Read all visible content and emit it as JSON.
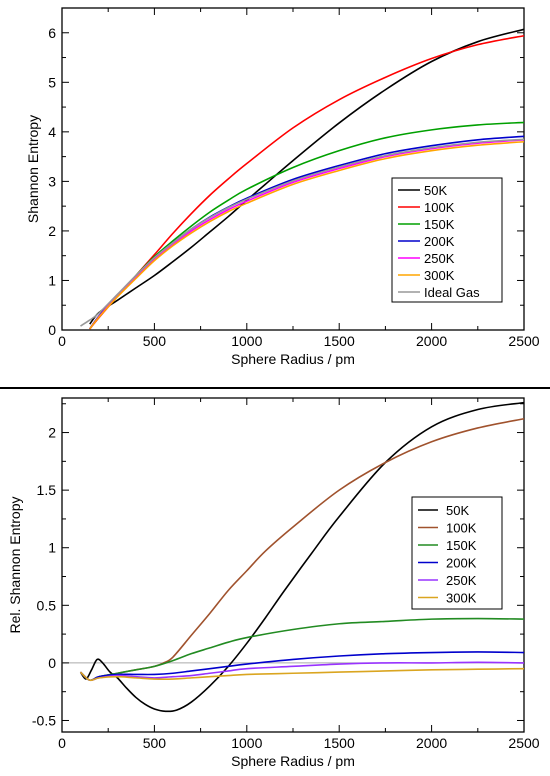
{
  "chart_data": [
    {
      "type": "line",
      "xlabel": "Sphere Radius / pm",
      "ylabel": "Shannon Entropy",
      "xlim": [
        0,
        2500
      ],
      "ylim": [
        0,
        6.5
      ],
      "xticks": [
        0,
        500,
        1000,
        1500,
        2000,
        2500
      ],
      "yticks": [
        0,
        1,
        2,
        3,
        4,
        5,
        6
      ],
      "grid": false,
      "legend_position": "lower-right",
      "series": [
        {
          "name": "50K",
          "color": "#000000",
          "x": [
            150,
            200,
            300,
            400,
            500,
            600,
            700,
            800,
            900,
            1000,
            1100,
            1250,
            1500,
            1750,
            2000,
            2250,
            2500
          ],
          "y": [
            0.12,
            0.35,
            0.6,
            0.85,
            1.1,
            1.38,
            1.67,
            1.98,
            2.29,
            2.62,
            2.94,
            3.42,
            4.18,
            4.85,
            5.42,
            5.82,
            6.07
          ]
        },
        {
          "name": "100K",
          "color": "#ff0000",
          "x": [
            150,
            200,
            300,
            400,
            500,
            600,
            700,
            800,
            900,
            1000,
            1250,
            1500,
            1750,
            2000,
            2250,
            2500
          ],
          "y": [
            0.02,
            0.25,
            0.68,
            1.1,
            1.52,
            1.95,
            2.35,
            2.72,
            3.05,
            3.36,
            4.08,
            4.65,
            5.1,
            5.48,
            5.76,
            5.94
          ]
        },
        {
          "name": "150K",
          "color": "#00a000",
          "x": [
            150,
            200,
            300,
            400,
            500,
            600,
            700,
            800,
            900,
            1000,
            1250,
            1500,
            1750,
            2000,
            2250,
            2500
          ],
          "y": [
            0.02,
            0.28,
            0.7,
            1.1,
            1.48,
            1.8,
            2.1,
            2.38,
            2.62,
            2.84,
            3.28,
            3.62,
            3.88,
            4.04,
            4.14,
            4.19
          ]
        },
        {
          "name": "200K",
          "color": "#0000cc",
          "x": [
            150,
            200,
            300,
            400,
            500,
            600,
            700,
            800,
            900,
            1000,
            1250,
            1500,
            1750,
            2000,
            2250,
            2500
          ],
          "y": [
            0.02,
            0.28,
            0.7,
            1.08,
            1.45,
            1.76,
            2.04,
            2.28,
            2.48,
            2.66,
            3.04,
            3.32,
            3.56,
            3.72,
            3.84,
            3.91
          ]
        },
        {
          "name": "250K",
          "color": "#ff00ff",
          "x": [
            150,
            200,
            300,
            400,
            500,
            600,
            700,
            800,
            900,
            1000,
            1250,
            1500,
            1750,
            2000,
            2250,
            2500
          ],
          "y": [
            0.02,
            0.27,
            0.69,
            1.06,
            1.42,
            1.73,
            2.0,
            2.23,
            2.43,
            2.6,
            2.98,
            3.26,
            3.5,
            3.66,
            3.77,
            3.84
          ]
        },
        {
          "name": "300K",
          "color": "#ffa500",
          "x": [
            150,
            200,
            300,
            400,
            500,
            600,
            700,
            800,
            900,
            1000,
            1250,
            1500,
            1750,
            2000,
            2250,
            2500
          ],
          "y": [
            0.02,
            0.26,
            0.67,
            1.04,
            1.4,
            1.7,
            1.96,
            2.19,
            2.39,
            2.56,
            2.94,
            3.22,
            3.46,
            3.62,
            3.73,
            3.8
          ]
        },
        {
          "name": "Ideal Gas",
          "color": "#999999",
          "x": [
            100,
            150,
            200,
            300,
            400,
            500,
            600,
            700,
            800,
            900,
            1000,
            1250,
            1500,
            1750,
            2000,
            2250,
            2500
          ],
          "y": [
            0.08,
            0.2,
            0.34,
            0.72,
            1.1,
            1.46,
            1.76,
            2.04,
            2.27,
            2.47,
            2.64,
            3.01,
            3.29,
            3.52,
            3.68,
            3.79,
            3.85
          ]
        }
      ]
    },
    {
      "type": "line",
      "xlabel": "Sphere Radius / pm",
      "ylabel": "Rel. Shannon Entropy",
      "xlim": [
        0,
        2500
      ],
      "ylim": [
        -0.6,
        2.3
      ],
      "xticks": [
        0,
        500,
        1000,
        1500,
        2000,
        2500
      ],
      "yticks": [
        -0.5,
        0,
        0.5,
        1,
        1.5,
        2
      ],
      "ytick_labels": [
        "-0.5",
        "0",
        "0.5",
        "1",
        "1.5",
        "2"
      ],
      "reference_line_y": 0,
      "grid": false,
      "legend_position": "upper-right",
      "series": [
        {
          "name": "50K",
          "color": "#000000",
          "x": [
            100,
            130,
            160,
            190,
            220,
            260,
            300,
            350,
            400,
            450,
            500,
            560,
            620,
            700,
            800,
            900,
            1000,
            1100,
            1200,
            1350,
            1500,
            1750,
            2000,
            2250,
            2500
          ],
          "y": [
            -0.08,
            -0.14,
            -0.06,
            0.03,
            0.0,
            -0.08,
            -0.13,
            -0.22,
            -0.3,
            -0.36,
            -0.4,
            -0.42,
            -0.41,
            -0.34,
            -0.2,
            -0.03,
            0.17,
            0.39,
            0.62,
            0.95,
            1.27,
            1.74,
            2.05,
            2.2,
            2.26
          ]
        },
        {
          "name": "100K",
          "color": "#a0522d",
          "x": [
            100,
            150,
            200,
            300,
            400,
            500,
            550,
            600,
            700,
            800,
            900,
            1000,
            1100,
            1250,
            1500,
            1750,
            2000,
            2250,
            2500
          ],
          "y": [
            -0.08,
            -0.15,
            -0.12,
            -0.09,
            -0.06,
            -0.03,
            0.0,
            0.05,
            0.24,
            0.43,
            0.63,
            0.8,
            0.97,
            1.18,
            1.5,
            1.74,
            1.92,
            2.04,
            2.12
          ]
        },
        {
          "name": "150K",
          "color": "#228b22",
          "x": [
            100,
            150,
            200,
            300,
            400,
            500,
            600,
            700,
            800,
            900,
            1000,
            1250,
            1500,
            1750,
            2000,
            2250,
            2500
          ],
          "y": [
            -0.08,
            -0.15,
            -0.12,
            -0.09,
            -0.06,
            -0.03,
            0.02,
            0.08,
            0.13,
            0.18,
            0.22,
            0.29,
            0.34,
            0.36,
            0.38,
            0.385,
            0.38
          ]
        },
        {
          "name": "200K",
          "color": "#0000cc",
          "x": [
            100,
            150,
            200,
            300,
            400,
            500,
            600,
            700,
            800,
            900,
            1000,
            1250,
            1500,
            1750,
            2000,
            2250,
            2500
          ],
          "y": [
            -0.08,
            -0.15,
            -0.12,
            -0.1,
            -0.1,
            -0.1,
            -0.09,
            -0.07,
            -0.05,
            -0.03,
            -0.01,
            0.03,
            0.06,
            0.08,
            0.09,
            0.095,
            0.09
          ]
        },
        {
          "name": "250K",
          "color": "#9933ff",
          "x": [
            100,
            150,
            200,
            300,
            400,
            500,
            600,
            700,
            800,
            900,
            1000,
            1250,
            1500,
            1750,
            2000,
            2250,
            2500
          ],
          "y": [
            -0.08,
            -0.15,
            -0.13,
            -0.11,
            -0.12,
            -0.13,
            -0.12,
            -0.11,
            -0.09,
            -0.07,
            -0.05,
            -0.03,
            -0.01,
            0.0,
            0.0,
            0.005,
            0.0
          ]
        },
        {
          "name": "300K",
          "color": "#daa520",
          "x": [
            100,
            150,
            200,
            300,
            400,
            500,
            600,
            700,
            800,
            900,
            1000,
            1250,
            1500,
            1750,
            2000,
            2250,
            2500
          ],
          "y": [
            -0.08,
            -0.15,
            -0.13,
            -0.12,
            -0.13,
            -0.14,
            -0.14,
            -0.13,
            -0.12,
            -0.11,
            -0.1,
            -0.09,
            -0.08,
            -0.07,
            -0.06,
            -0.055,
            -0.05
          ]
        }
      ]
    }
  ]
}
